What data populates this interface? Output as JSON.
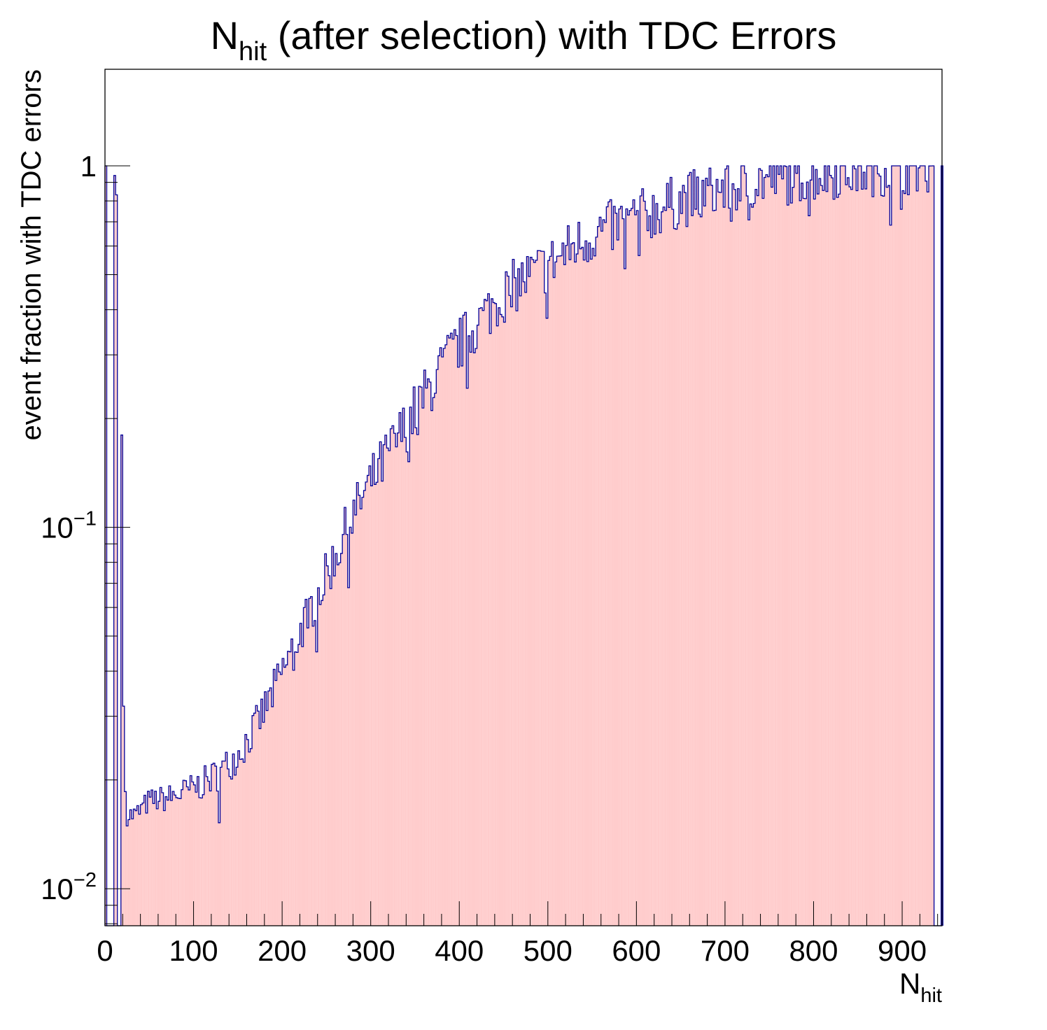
{
  "chart_data": {
    "type": "bar",
    "title": {
      "main": "N",
      "sub": "hit",
      "rest": " (after selection) with TDC Errors"
    },
    "xlabel": {
      "main": "N",
      "sub": "hit"
    },
    "ylabel": "event fraction with TDC errors",
    "xlim": [
      0,
      945
    ],
    "ylim": [
      0.0079,
      1.85
    ],
    "yscale": "log",
    "xticks": [
      0,
      100,
      200,
      300,
      400,
      500,
      600,
      700,
      800,
      900
    ],
    "yticks": [
      {
        "value": 0.01,
        "base": "10",
        "exp": "−2"
      },
      {
        "value": 0.1,
        "base": "10",
        "exp": "−1"
      },
      {
        "value": 1,
        "label": "1"
      }
    ],
    "grid": false,
    "fill_color": "#FFCCCC",
    "line_color": "#000099",
    "bin_width": 2,
    "anchors": [
      [
        2,
        1.0
      ],
      [
        10,
        1.0
      ],
      [
        17,
        0.65
      ],
      [
        18,
        0.5
      ],
      [
        19,
        0.18
      ],
      [
        20,
        0.13
      ],
      [
        21,
        0.032
      ],
      [
        22,
        0.02
      ],
      [
        25,
        0.016
      ],
      [
        35,
        0.016
      ],
      [
        50,
        0.0175
      ],
      [
        70,
        0.0178
      ],
      [
        90,
        0.0185
      ],
      [
        110,
        0.0195
      ],
      [
        130,
        0.021
      ],
      [
        150,
        0.0235
      ],
      [
        170,
        0.028
      ],
      [
        190,
        0.035
      ],
      [
        210,
        0.045
      ],
      [
        230,
        0.058
      ],
      [
        250,
        0.073
      ],
      [
        270,
        0.095
      ],
      [
        290,
        0.12
      ],
      [
        310,
        0.145
      ],
      [
        330,
        0.175
      ],
      [
        350,
        0.21
      ],
      [
        370,
        0.25
      ],
      [
        390,
        0.3
      ],
      [
        410,
        0.34
      ],
      [
        430,
        0.39
      ],
      [
        450,
        0.44
      ],
      [
        470,
        0.48
      ],
      [
        500,
        0.53
      ],
      [
        530,
        0.6
      ],
      [
        560,
        0.66
      ],
      [
        590,
        0.7
      ],
      [
        620,
        0.75
      ],
      [
        650,
        0.8
      ],
      [
        680,
        0.84
      ],
      [
        710,
        0.88
      ],
      [
        740,
        0.91
      ],
      [
        770,
        0.93
      ],
      [
        800,
        0.95
      ],
      [
        830,
        0.97
      ],
      [
        860,
        0.98
      ],
      [
        890,
        0.99
      ],
      [
        935,
        1.0
      ]
    ],
    "empty_bins": [
      3,
      4,
      5,
      6,
      8,
      9,
      15,
      16,
      937,
      938,
      941,
      942
    ]
  }
}
